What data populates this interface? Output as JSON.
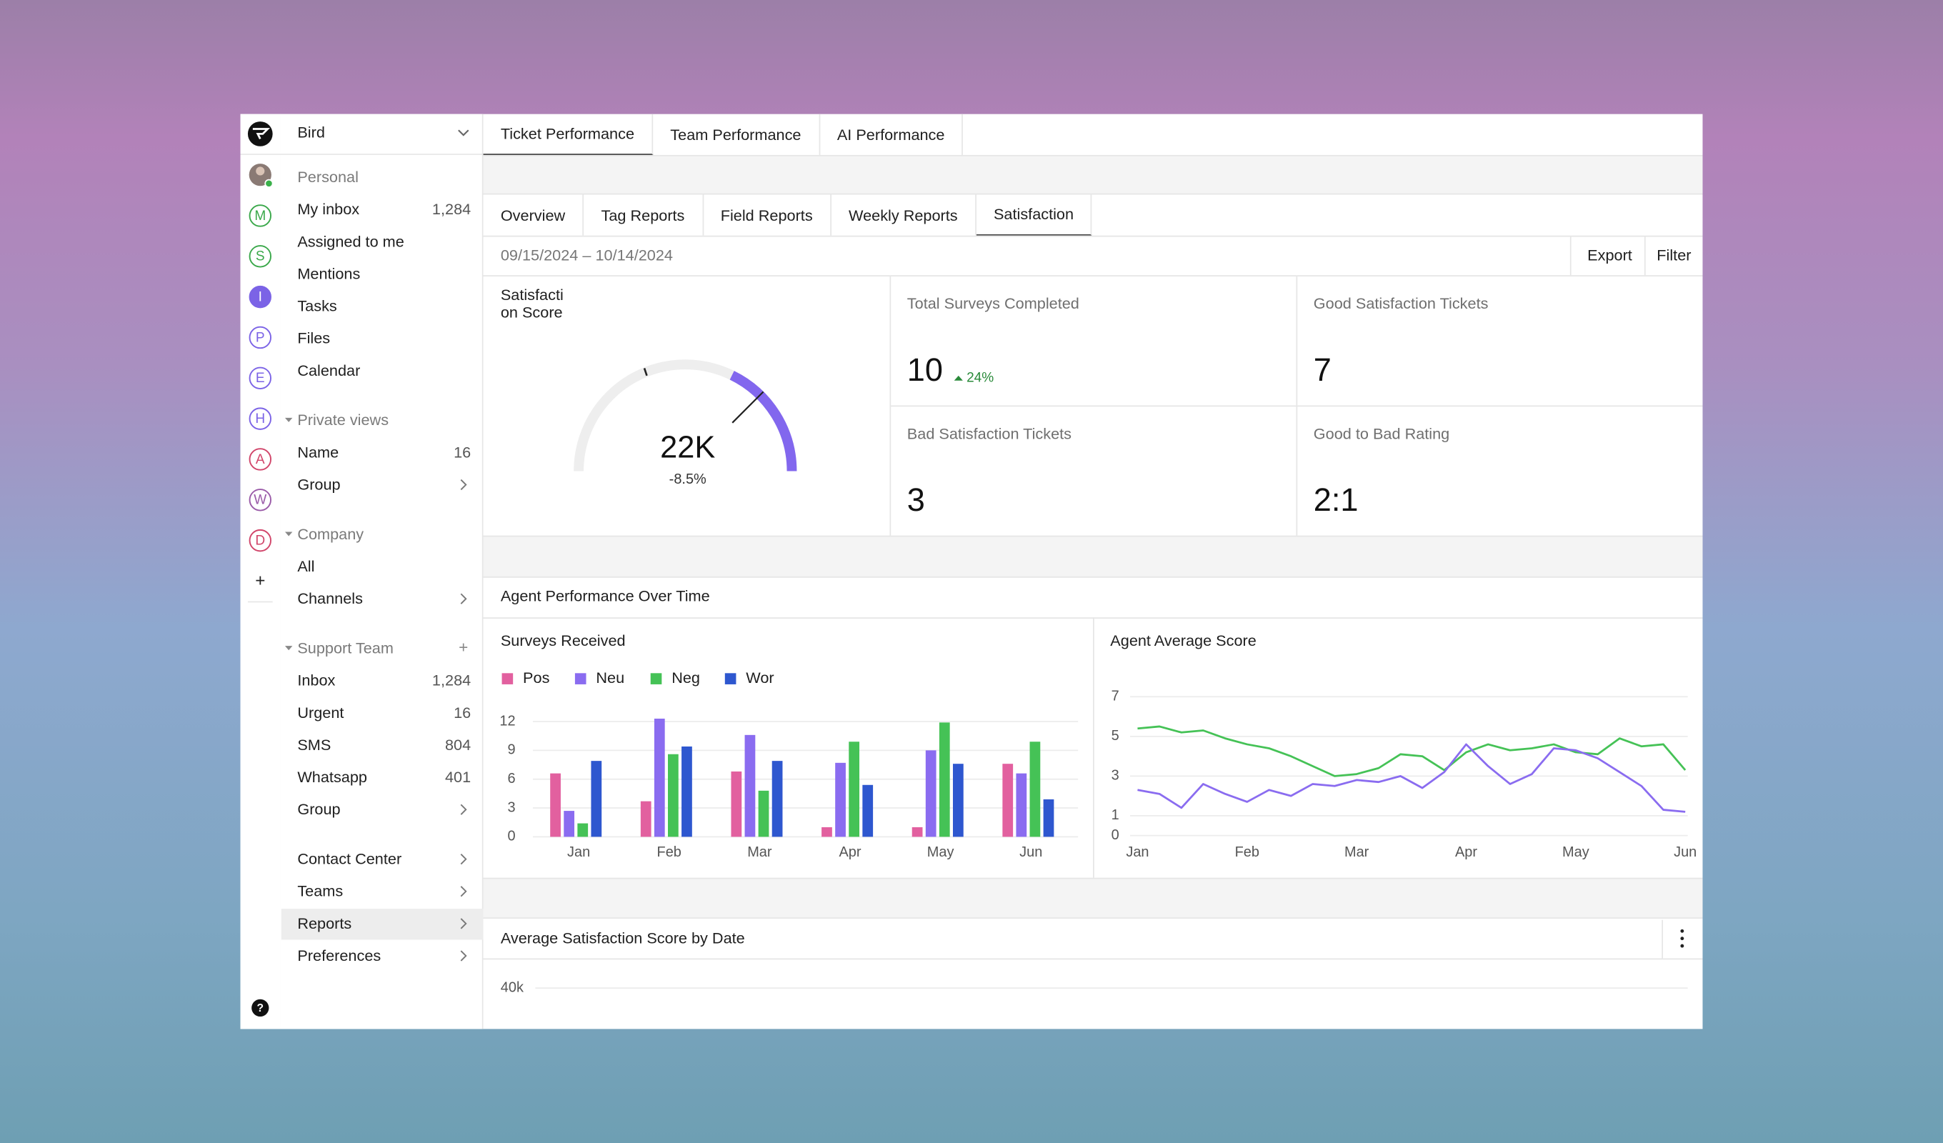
{
  "rail": {
    "letters": [
      {
        "label": "M",
        "color": "#3aa84a"
      },
      {
        "label": "S",
        "color": "#3aa84a"
      },
      {
        "label": "I",
        "color": "#7b63e6",
        "filled": true
      },
      {
        "label": "P",
        "color": "#7b63e6"
      },
      {
        "label": "E",
        "color": "#7b63e6"
      },
      {
        "label": "H",
        "color": "#7b63e6"
      },
      {
        "label": "A",
        "color": "#d1456a"
      },
      {
        "label": "W",
        "color": "#9a5aa8"
      },
      {
        "label": "D",
        "color": "#d1456a"
      }
    ],
    "add": "+",
    "help": "?"
  },
  "sidebar": {
    "workspace": "Bird",
    "sections": [
      {
        "title": "Personal",
        "items": [
          {
            "label": "My inbox",
            "count": "1,284"
          },
          {
            "label": "Assigned to me"
          },
          {
            "label": "Mentions"
          },
          {
            "label": "Tasks"
          },
          {
            "label": "Files"
          },
          {
            "label": "Calendar"
          }
        ]
      },
      {
        "title": "Private views",
        "collapsible": true,
        "items": [
          {
            "label": "Name",
            "count": "16"
          },
          {
            "label": "Group",
            "chevron": true
          }
        ]
      },
      {
        "title": "Company",
        "collapsible": true,
        "items": [
          {
            "label": "All"
          },
          {
            "label": "Channels",
            "chevron": true
          }
        ]
      },
      {
        "title": "Support Team",
        "collapsible": true,
        "action": "+",
        "items": [
          {
            "label": "Inbox",
            "count": "1,284"
          },
          {
            "label": "Urgent",
            "count": "16"
          },
          {
            "label": "SMS",
            "count": "804"
          },
          {
            "label": "Whatsapp",
            "count": "401"
          },
          {
            "label": "Group",
            "chevron": true
          }
        ]
      },
      {
        "items": [
          {
            "label": "Contact Center",
            "chevron": true
          },
          {
            "label": "Teams",
            "chevron": true
          },
          {
            "label": "Reports",
            "chevron": true,
            "selected": true
          },
          {
            "label": "Preferences",
            "chevron": true
          }
        ]
      }
    ]
  },
  "tabs": {
    "primary": [
      "Ticket Performance",
      "Team Performance",
      "AI Performance"
    ],
    "primary_active": 0,
    "secondary": [
      "Overview",
      "Tag Reports",
      "Field Reports",
      "Weekly Reports",
      "Satisfaction"
    ],
    "secondary_active": 4
  },
  "date_range": "09/15/2024 – 10/14/2024",
  "actions": [
    "Export",
    "Filter"
  ],
  "gauge": {
    "title": "Satisfaction Score",
    "value": "22K",
    "change": "-8.5%"
  },
  "kpis": [
    {
      "label": "Total Surveys Completed",
      "value": "10",
      "change": "24%"
    },
    {
      "label": "Good Satisfaction Tickets",
      "value": "7"
    },
    {
      "label": "Bad Satisfaction Tickets",
      "value": "3"
    },
    {
      "label": "Good to Bad Rating",
      "value": "2:1"
    }
  ],
  "section_title": "Agent Performance Over Time",
  "chart_data": [
    {
      "type": "bar",
      "title": "Surveys Received",
      "categories": [
        "Jan",
        "Feb",
        "Mar",
        "Apr",
        "May",
        "Jun"
      ],
      "series": [
        {
          "name": "Pos",
          "color": "#e2609f",
          "values": [
            6.6,
            3.7,
            6.8,
            1.0,
            1.0,
            7.6
          ]
        },
        {
          "name": "Neu",
          "color": "#8a6cf0",
          "values": [
            2.7,
            12.3,
            10.6,
            7.7,
            9.0,
            6.6
          ]
        },
        {
          "name": "Neg",
          "color": "#45c256",
          "values": [
            1.4,
            8.6,
            4.8,
            9.9,
            11.9,
            9.9
          ]
        },
        {
          "name": "Wor",
          "color": "#2e57cf",
          "values": [
            7.9,
            9.4,
            7.9,
            5.4,
            7.6,
            3.9
          ]
        }
      ],
      "ylim": [
        0,
        12
      ],
      "yticks": [
        0,
        3,
        6,
        9,
        12
      ],
      "grid": true
    },
    {
      "type": "line",
      "title": "Agent Average Score",
      "x": [
        0,
        0.2,
        0.4,
        0.6,
        0.8,
        1,
        1.2,
        1.4,
        1.6,
        1.8,
        2,
        2.2,
        2.4,
        2.6,
        2.8,
        3,
        3.2,
        3.4,
        3.6,
        3.8,
        4,
        4.2,
        4.4,
        4.6,
        4.8,
        5
      ],
      "series": [
        {
          "color": "#45c256",
          "values": [
            5.4,
            5.5,
            5.2,
            5.3,
            4.9,
            4.6,
            4.4,
            4.0,
            3.5,
            3.0,
            3.1,
            3.4,
            4.1,
            4.0,
            3.3,
            4.2,
            4.6,
            4.3,
            4.4,
            4.6,
            4.2,
            4.1,
            4.9,
            4.5,
            4.6,
            3.3
          ]
        },
        {
          "color": "#8a6cf0",
          "values": [
            2.3,
            2.1,
            1.4,
            2.6,
            2.1,
            1.7,
            2.3,
            2.0,
            2.6,
            2.5,
            2.8,
            2.7,
            3.0,
            2.4,
            3.2,
            4.6,
            3.5,
            2.6,
            3.1,
            4.4,
            4.3,
            3.9,
            3.2,
            2.5,
            1.3,
            1.2
          ]
        }
      ],
      "xlim": [
        0,
        5
      ],
      "xticks": [
        {
          "value": 0,
          "label": "Jan"
        },
        {
          "value": 1,
          "label": "Feb"
        },
        {
          "value": 2,
          "label": "Mar"
        },
        {
          "value": 3,
          "label": "Apr"
        },
        {
          "value": 4,
          "label": "May"
        },
        {
          "value": 5,
          "label": "Jun"
        }
      ],
      "ylim": [
        0,
        7
      ],
      "yticks": [
        7,
        5,
        3,
        1,
        0
      ],
      "grid": true
    },
    {
      "type": "line",
      "title": "Average Satisfaction Score by Date",
      "ylim": [
        0,
        40000
      ],
      "yticks": [
        {
          "value": 40000,
          "label": "40k"
        }
      ],
      "grid": true
    }
  ]
}
